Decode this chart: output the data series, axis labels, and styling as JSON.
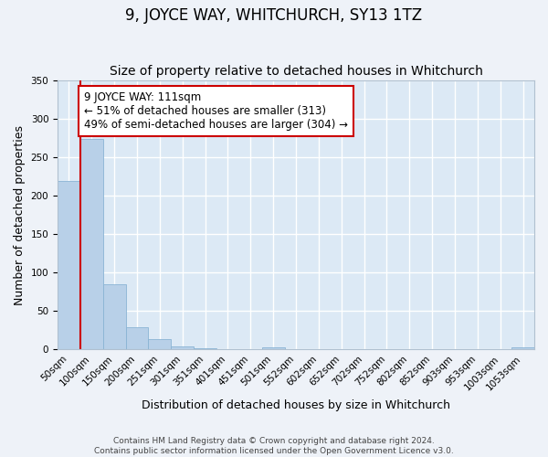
{
  "title": "9, JOYCE WAY, WHITCHURCH, SY13 1TZ",
  "subtitle": "Size of property relative to detached houses in Whitchurch",
  "xlabel": "Distribution of detached houses by size in Whitchurch",
  "ylabel": "Number of detached properties",
  "bar_values": [
    219,
    274,
    85,
    29,
    14,
    4,
    2,
    0,
    0,
    3,
    0,
    0,
    0,
    0,
    0,
    0,
    0,
    0,
    0,
    0,
    3
  ],
  "bar_labels": [
    "50sqm",
    "100sqm",
    "150sqm",
    "200sqm",
    "251sqm",
    "301sqm",
    "351sqm",
    "401sqm",
    "451sqm",
    "501sqm",
    "552sqm",
    "602sqm",
    "652sqm",
    "702sqm",
    "752sqm",
    "802sqm",
    "852sqm",
    "903sqm",
    "953sqm",
    "1003sqm",
    "1053sqm"
  ],
  "ylim": [
    0,
    350
  ],
  "yticks": [
    0,
    50,
    100,
    150,
    200,
    250,
    300,
    350
  ],
  "bar_color": "#b8d0e8",
  "bar_edge_color": "#8ab4d4",
  "bg_color": "#dce9f5",
  "grid_color": "#ffffff",
  "vline_x": 1,
  "vline_color": "#cc0000",
  "annotation_title": "9 JOYCE WAY: 111sqm",
  "annotation_line1": "← 51% of detached houses are smaller (313)",
  "annotation_line2": "49% of semi-detached houses are larger (304) →",
  "annotation_box_facecolor": "#ffffff",
  "annotation_box_edgecolor": "#cc0000",
  "footer1": "Contains HM Land Registry data © Crown copyright and database right 2024.",
  "footer2": "Contains public sector information licensed under the Open Government Licence v3.0.",
  "title_fontsize": 12,
  "subtitle_fontsize": 10,
  "axis_label_fontsize": 9,
  "tick_fontsize": 7.5,
  "annotation_fontsize": 8.5,
  "footer_fontsize": 6.5
}
